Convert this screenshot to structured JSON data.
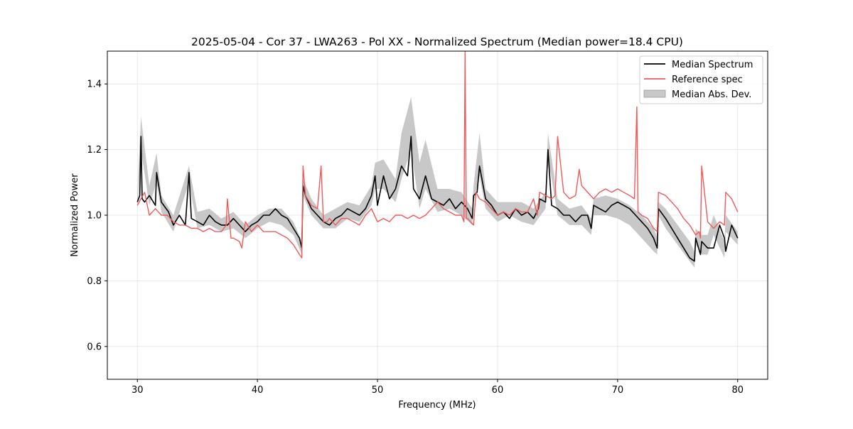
{
  "chart_data": {
    "type": "line",
    "title": "2025-05-04 - Cor 37 - LWA263 - Pol XX - Normalized Spectrum (Median power=18.4 CPU)",
    "xlabel": "Frequency (MHz)",
    "ylabel": "Normalized Power",
    "xlim": [
      27.5,
      82.5
    ],
    "ylim": [
      0.5,
      1.5
    ],
    "xticks": [
      30,
      40,
      50,
      60,
      70,
      80
    ],
    "yticks": [
      0.6,
      0.8,
      1.0,
      1.2,
      1.4
    ],
    "xtick_labels": [
      "30",
      "40",
      "50",
      "60",
      "70",
      "80"
    ],
    "ytick_labels": [
      "0.6",
      "0.8",
      "1.0",
      "1.2",
      "1.4"
    ],
    "grid": true,
    "legend_position": "top-right",
    "colors": {
      "median": "#000000",
      "reference": "#f05a5a",
      "mad": "#c8c8c8"
    },
    "series": [
      {
        "name": "Median Spectrum",
        "x": [
          30.0,
          30.2,
          30.3,
          30.4,
          30.6,
          31.0,
          31.5,
          31.6,
          32.0,
          32.6,
          33.0,
          33.5,
          34.0,
          34.3,
          34.5,
          35.0,
          35.5,
          36.0,
          36.5,
          37.0,
          37.5,
          38.0,
          38.5,
          39.0,
          39.5,
          40.0,
          40.5,
          41.0,
          41.5,
          42.0,
          42.5,
          43.0,
          43.5,
          43.7,
          43.8,
          44.0,
          44.5,
          45.0,
          45.5,
          46.0,
          46.5,
          47.0,
          47.5,
          48.0,
          48.5,
          49.0,
          49.5,
          49.8,
          50.0,
          50.5,
          51.0,
          51.5,
          52.0,
          52.5,
          52.8,
          53.0,
          53.5,
          54.0,
          54.5,
          55.0,
          55.5,
          56.0,
          56.5,
          57.0,
          57.5,
          57.9,
          58.0,
          58.3,
          58.5,
          59.0,
          59.5,
          60.0,
          60.5,
          61.0,
          61.5,
          62.0,
          62.5,
          63.0,
          63.4,
          63.5,
          64.0,
          64.2,
          64.5,
          65.0,
          65.5,
          66.0,
          66.5,
          67.0,
          67.5,
          67.8,
          68.0,
          68.5,
          69.0,
          69.5,
          70.0,
          70.5,
          71.0,
          71.5,
          72.0,
          72.5,
          73.0,
          73.3,
          73.4,
          74.0,
          74.5,
          75.0,
          75.5,
          76.0,
          76.4,
          76.5,
          76.9,
          77.0,
          77.5,
          78.0,
          78.5,
          78.9,
          79.0,
          79.5,
          80.0
        ],
        "values": [
          1.04,
          1.06,
          1.24,
          1.05,
          1.04,
          1.06,
          1.03,
          1.13,
          1.04,
          1.01,
          0.97,
          1.0,
          0.97,
          1.13,
          0.99,
          0.98,
          0.97,
          1.0,
          0.98,
          0.97,
          0.97,
          0.99,
          0.97,
          0.95,
          0.97,
          0.98,
          1.0,
          1.0,
          1.02,
          1.0,
          0.99,
          0.96,
          0.93,
          0.9,
          1.09,
          1.06,
          1.02,
          1.0,
          0.98,
          0.97,
          0.99,
          1.0,
          1.02,
          1.01,
          1.0,
          1.02,
          1.06,
          1.12,
          1.03,
          1.12,
          1.05,
          1.08,
          1.15,
          1.12,
          1.24,
          1.08,
          1.05,
          1.12,
          1.05,
          1.04,
          1.03,
          1.05,
          1.02,
          1.04,
          1.02,
          0.99,
          1.06,
          1.07,
          1.15,
          1.05,
          1.03,
          1.0,
          1.01,
          0.99,
          1.02,
          1.0,
          1.01,
          0.99,
          1.02,
          1.05,
          1.04,
          1.2,
          1.03,
          1.02,
          1.0,
          1.0,
          0.98,
          1.0,
          1.0,
          0.96,
          1.03,
          1.02,
          1.01,
          1.03,
          1.04,
          1.03,
          1.02,
          1.0,
          0.98,
          0.96,
          0.93,
          0.9,
          1.02,
          0.99,
          0.96,
          0.93,
          0.9,
          0.87,
          0.86,
          0.93,
          0.88,
          0.92,
          0.9,
          0.9,
          0.97,
          0.93,
          0.89,
          0.97,
          0.93
        ]
      },
      {
        "name": "Reference spec",
        "x": [
          30.0,
          30.3,
          30.6,
          31.0,
          31.5,
          32.0,
          32.5,
          33.0,
          33.5,
          34.0,
          34.5,
          35.0,
          35.5,
          36.0,
          36.5,
          37.0,
          37.4,
          37.5,
          37.8,
          38.0,
          38.5,
          38.7,
          39.0,
          39.5,
          40.0,
          40.5,
          41.0,
          41.5,
          42.0,
          42.5,
          43.0,
          43.5,
          43.7,
          43.8,
          44.0,
          44.5,
          45.0,
          45.3,
          45.5,
          45.8,
          46.0,
          46.5,
          47.0,
          47.5,
          48.0,
          48.5,
          49.0,
          49.5,
          50.0,
          50.5,
          51.0,
          51.5,
          52.0,
          52.5,
          53.0,
          53.5,
          54.0,
          54.5,
          55.0,
          55.5,
          56.0,
          56.5,
          57.0,
          57.2,
          57.3,
          57.4,
          57.5,
          58.0,
          58.2,
          58.5,
          59.0,
          59.5,
          60.0,
          60.5,
          61.0,
          61.5,
          62.0,
          62.5,
          63.0,
          63.3,
          63.5,
          64.0,
          64.5,
          64.8,
          65.0,
          65.5,
          66.0,
          66.5,
          66.8,
          67.0,
          68.0,
          68.5,
          69.0,
          69.5,
          70.0,
          70.5,
          71.0,
          71.4,
          71.6,
          71.7,
          72.0,
          72.5,
          73.0,
          73.3,
          73.4,
          74.0,
          74.5,
          75.0,
          75.5,
          76.0,
          76.5,
          76.8,
          76.9,
          77.0,
          77.5,
          78.0,
          78.5,
          78.9,
          79.0,
          79.5,
          80.0
        ],
        "values": [
          1.03,
          1.05,
          1.07,
          1.0,
          1.02,
          1.0,
          1.0,
          0.98,
          0.97,
          0.97,
          0.96,
          0.96,
          0.95,
          0.96,
          0.95,
          0.95,
          0.97,
          1.05,
          0.93,
          0.93,
          0.92,
          0.9,
          0.98,
          0.95,
          0.97,
          0.95,
          0.95,
          0.95,
          0.94,
          0.93,
          0.91,
          0.88,
          0.87,
          1.15,
          1.06,
          1.03,
          1.02,
          1.15,
          0.98,
          0.98,
          0.99,
          0.97,
          0.99,
          0.99,
          0.98,
          0.97,
          1.0,
          1.02,
          0.98,
          0.99,
          0.98,
          1.0,
          1.0,
          0.99,
          1.0,
          0.99,
          1.0,
          1.02,
          1.04,
          1.02,
          1.01,
          1.0,
          1.0,
          0.98,
          1.5,
          0.99,
          0.99,
          0.97,
          1.07,
          1.05,
          1.04,
          1.02,
          1.0,
          1.01,
          1.0,
          1.02,
          1.01,
          1.01,
          1.05,
          1.0,
          1.07,
          1.06,
          1.05,
          1.06,
          1.24,
          1.07,
          1.05,
          1.06,
          1.14,
          1.09,
          1.05,
          1.07,
          1.08,
          1.07,
          1.08,
          1.07,
          1.06,
          1.05,
          1.33,
          1.01,
          1.0,
          0.99,
          0.96,
          0.95,
          1.07,
          1.06,
          1.04,
          1.02,
          0.99,
          0.97,
          0.94,
          0.95,
          0.93,
          1.15,
          0.98,
          0.96,
          0.98,
          0.97,
          1.07,
          1.05,
          1.01
        ]
      }
    ],
    "mad_band": {
      "name": "Median Abs. Dev.",
      "x": [
        30.0,
        30.3,
        31.0,
        31.6,
        32.0,
        33.0,
        34.3,
        35.0,
        36.0,
        37.0,
        38.0,
        39.0,
        40.0,
        41.0,
        42.0,
        43.0,
        43.7,
        43.8,
        44.5,
        45.5,
        46.5,
        47.5,
        48.5,
        49.5,
        49.8,
        50.5,
        51.5,
        52.0,
        52.8,
        53.5,
        54.0,
        55.0,
        56.0,
        57.0,
        57.9,
        58.0,
        58.5,
        59.0,
        60.0,
        61.0,
        62.0,
        63.0,
        64.0,
        64.2,
        65.0,
        66.0,
        67.0,
        67.8,
        68.0,
        69.0,
        70.0,
        71.0,
        72.0,
        73.0,
        73.3,
        73.4,
        74.0,
        75.0,
        76.0,
        76.4,
        76.5,
        77.0,
        77.5,
        78.0,
        78.9,
        79.0,
        80.0
      ],
      "lower": [
        1.02,
        1.2,
        1.03,
        1.1,
        1.01,
        0.95,
        1.1,
        0.96,
        0.97,
        0.95,
        0.96,
        0.93,
        0.96,
        0.98,
        0.97,
        0.94,
        0.88,
        1.06,
        1.0,
        0.96,
        0.96,
        0.99,
        0.98,
        1.03,
        1.08,
        1.08,
        1.04,
        1.11,
        1.2,
        1.02,
        1.08,
        1.01,
        1.02,
        1.0,
        0.97,
        1.04,
        1.12,
        1.02,
        0.98,
        1.0,
        0.98,
        0.97,
        1.02,
        1.18,
        1.0,
        0.97,
        0.97,
        0.94,
        1.0,
        1.0,
        0.99,
        0.97,
        0.93,
        0.89,
        0.88,
        1.0,
        0.96,
        0.91,
        0.86,
        0.84,
        0.91,
        0.88,
        0.88,
        0.94,
        0.87,
        0.95,
        0.91
      ],
      "upper": [
        1.06,
        1.3,
        1.09,
        1.19,
        1.06,
        1.0,
        1.15,
        1.01,
        1.02,
        0.99,
        1.01,
        0.97,
        1.0,
        1.02,
        1.02,
        0.98,
        0.92,
        1.11,
        1.05,
        1.0,
        1.02,
        1.04,
        1.03,
        1.09,
        1.16,
        1.17,
        1.11,
        1.25,
        1.36,
        1.16,
        1.23,
        1.08,
        1.08,
        1.07,
        1.02,
        1.09,
        1.25,
        1.08,
        1.04,
        1.04,
        1.04,
        1.02,
        1.07,
        1.25,
        1.05,
        1.02,
        1.03,
        0.99,
        1.05,
        1.06,
        1.05,
        1.03,
        1.0,
        0.96,
        0.93,
        1.04,
        1.02,
        0.97,
        0.92,
        0.89,
        0.96,
        0.94,
        0.94,
        1.0,
        0.92,
        1.0,
        0.95
      ]
    }
  }
}
